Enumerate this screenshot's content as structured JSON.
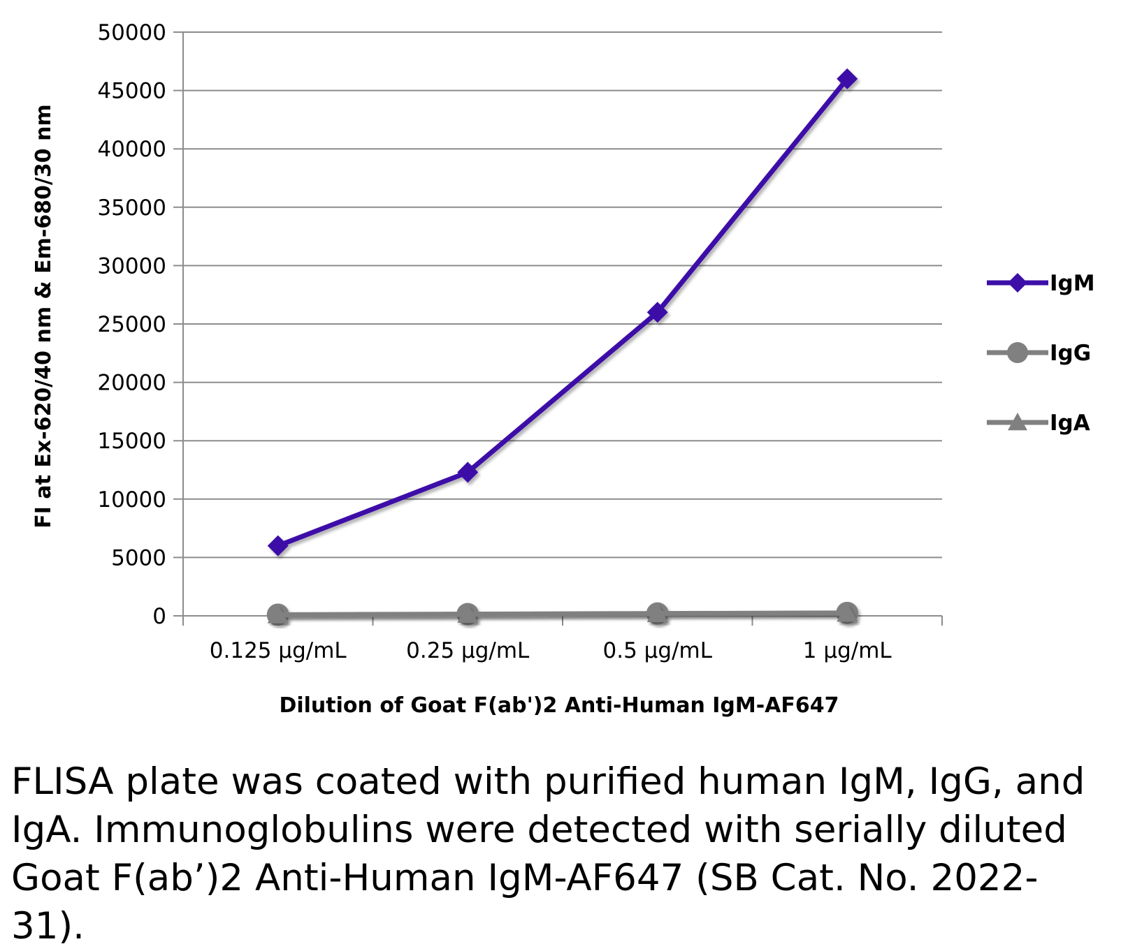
{
  "chart_data": {
    "type": "line",
    "title": "",
    "xlabel": "Dilution of Goat F(ab')2 Anti-Human IgM-AF647",
    "ylabel": "FI at Ex-620/40 nm & Em-680/30 nm",
    "categories": [
      "0.125 µg/mL",
      "0.25 µg/mL",
      "0.5 µg/mL",
      "1 µg/mL"
    ],
    "ylim": [
      0,
      50000
    ],
    "yticks": [
      "0",
      "5000",
      "10000",
      "15000",
      "20000",
      "25000",
      "30000",
      "35000",
      "40000",
      "45000",
      "50000"
    ],
    "grid": true,
    "legend_position": "right",
    "series": [
      {
        "name": "IgM",
        "values": [
          6000,
          12300,
          26000,
          46000
        ],
        "color": "#3d0fa8",
        "marker": "diamond"
      },
      {
        "name": "IgG",
        "values": [
          100,
          150,
          200,
          250
        ],
        "color": "#808080",
        "marker": "circle"
      },
      {
        "name": "IgA",
        "values": [
          80,
          120,
          180,
          220
        ],
        "color": "#808080",
        "marker": "triangle"
      }
    ]
  },
  "caption": "FLISA plate was coated with purified human IgM, IgG, and IgA.  Immunoglobulins were detected with serially diluted Goat F(ab’)2 Anti-Human IgM-AF647 (SB Cat. No. 2022-31)."
}
